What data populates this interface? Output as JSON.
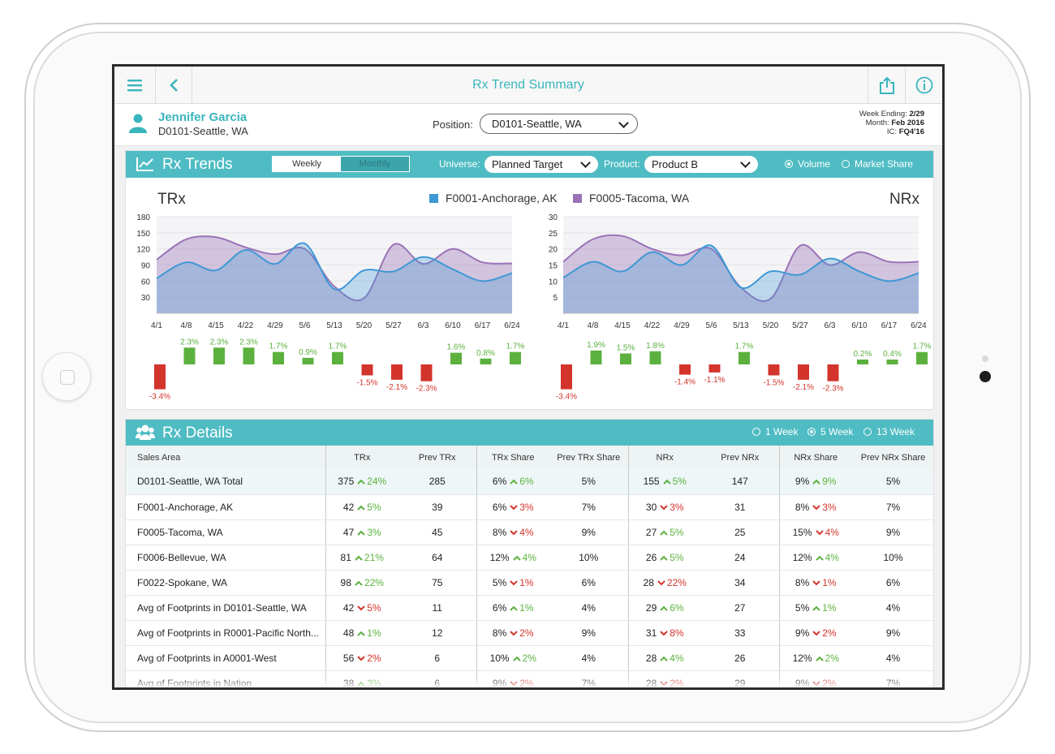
{
  "header": {
    "title": "Rx Trend Summary",
    "menu_icon": "hamburger-icon",
    "back_icon": "chevron-left-icon",
    "share_icon": "share-icon",
    "info_icon": "info-icon"
  },
  "user": {
    "name": "Jennifer Garcia",
    "territory": "D0101-Seattle, WA",
    "position_label": "Position:",
    "position_value": "D0101-Seattle, WA"
  },
  "period": {
    "week_label": "Week Ending:",
    "week_value": "2/29",
    "month_label": "Month:",
    "month_value": "Feb 2016",
    "ic_label": "IC:",
    "ic_value": "FQ4'16"
  },
  "trends": {
    "title": "Rx Trends",
    "tabs": [
      "Weekly",
      "Monthly"
    ],
    "universe_label": "Universe:",
    "universe_value": "Planned Target",
    "product_label": "Product:",
    "product_value": "Product B",
    "radios": [
      "Volume",
      "Market Share"
    ]
  },
  "colors": {
    "accent": "#4fbcc3",
    "series1": "#3e98d4",
    "series2": "#9a73b8",
    "up": "#5cb13e",
    "down": "#d3342c"
  },
  "chart_data": [
    {
      "type": "area",
      "title": "TRx",
      "x": [
        "4/1",
        "4/8",
        "4/15",
        "4/22",
        "4/29",
        "5/6",
        "5/13",
        "5/20",
        "5/27",
        "6/3",
        "6/10",
        "6/17",
        "6/24"
      ],
      "ylim": [
        0,
        180
      ],
      "yticks": [
        30,
        60,
        90,
        120,
        150,
        180
      ],
      "series": [
        {
          "name": "F0001-Anchorage, AK",
          "values": [
            65,
            95,
            80,
            118,
            92,
            130,
            45,
            80,
            78,
            105,
            82,
            60,
            75
          ]
        },
        {
          "name": "F0005-Tacoma, WA",
          "values": [
            100,
            138,
            142,
            123,
            110,
            120,
            50,
            28,
            128,
            92,
            120,
            95,
            93
          ]
        }
      ],
      "changes": [
        -3.4,
        2.3,
        2.3,
        2.3,
        1.7,
        0.9,
        1.7,
        -1.5,
        -2.1,
        -2.3,
        1.6,
        0.8,
        1.7
      ],
      "change_labels": [
        "-3.4%",
        "2.3%",
        "2.3%",
        "2.3%",
        "1.7%",
        "0.9%",
        "1.7%",
        "-1.5%",
        "-2.1%",
        "-2.3%",
        "1.6%",
        "0.8%",
        "1.7%"
      ]
    },
    {
      "type": "area",
      "title": "NRx",
      "x": [
        "4/1",
        "4/8",
        "4/15",
        "4/22",
        "4/29",
        "5/6",
        "5/13",
        "5/20",
        "5/27",
        "6/3",
        "6/10",
        "6/17",
        "6/24"
      ],
      "ylim": [
        0,
        30
      ],
      "yticks": [
        5,
        10,
        15,
        20,
        25,
        30
      ],
      "series": [
        {
          "name": "F0001-Anchorage, AK",
          "values": [
            11,
            16,
            13,
            19,
            15,
            21,
            8,
            13,
            12,
            17,
            13,
            10,
            12.5
          ]
        },
        {
          "name": "F0005-Tacoma, WA",
          "values": [
            16,
            23,
            24,
            20,
            18,
            20,
            8,
            4.5,
            21,
            15,
            19,
            16,
            16
          ]
        }
      ],
      "changes": [
        -3.4,
        1.9,
        1.5,
        1.8,
        -1.4,
        -1.1,
        1.7,
        -1.5,
        -2.1,
        -2.3,
        0.2,
        0.4,
        1.7
      ],
      "change_labels": [
        "-3.4%",
        "1.9%",
        "1.5%",
        "1.8%",
        "-1.4%",
        "-1.1%",
        "1.7%",
        "-1.5%",
        "-2.1%",
        "-2.3%",
        "0.2%",
        "0.4%",
        "1.7%"
      ]
    }
  ],
  "details": {
    "title": "Rx Details",
    "radios": [
      "1 Week",
      "5 Week",
      "13 Week"
    ],
    "columns": [
      "Sales Area",
      "TRx",
      "Prev TRx",
      "TRx Share",
      "Prev TRx Share",
      "NRx",
      "Prev NRx",
      "NRx Share",
      "Prev NRx Share"
    ],
    "rows": [
      {
        "area": "D0101-Seattle, WA Total",
        "trx": "375",
        "trx_d": "up",
        "trx_c": "24%",
        "prev_trx": "285",
        "trxs": "6%",
        "trxs_d": "up",
        "trxs_c": "6%",
        "prev_trxs": "5%",
        "nrx": "155",
        "nrx_d": "up",
        "nrx_c": "5%",
        "prev_nrx": "147",
        "nrxs": "9%",
        "nrxs_d": "up",
        "nrxs_c": "9%",
        "prev_nrxs": "5%"
      },
      {
        "area": "F0001-Anchorage, AK",
        "trx": "42",
        "trx_d": "up",
        "trx_c": "5%",
        "prev_trx": "39",
        "trxs": "6%",
        "trxs_d": "down",
        "trxs_c": "3%",
        "prev_trxs": "7%",
        "nrx": "30",
        "nrx_d": "down",
        "nrx_c": "3%",
        "prev_nrx": "31",
        "nrxs": "8%",
        "nrxs_d": "down",
        "nrxs_c": "3%",
        "prev_nrxs": "7%"
      },
      {
        "area": "F0005-Tacoma, WA",
        "trx": "47",
        "trx_d": "up",
        "trx_c": "3%",
        "prev_trx": "45",
        "trxs": "8%",
        "trxs_d": "down",
        "trxs_c": "4%",
        "prev_trxs": "9%",
        "nrx": "27",
        "nrx_d": "up",
        "nrx_c": "5%",
        "prev_nrx": "25",
        "nrxs": "15%",
        "nrxs_d": "down",
        "nrxs_c": "4%",
        "prev_nrxs": "9%"
      },
      {
        "area": "F0006-Bellevue, WA",
        "trx": "81",
        "trx_d": "up",
        "trx_c": "21%",
        "prev_trx": "64",
        "trxs": "12%",
        "trxs_d": "up",
        "trxs_c": "4%",
        "prev_trxs": "10%",
        "nrx": "26",
        "nrx_d": "up",
        "nrx_c": "5%",
        "prev_nrx": "24",
        "nrxs": "12%",
        "nrxs_d": "up",
        "nrxs_c": "4%",
        "prev_nrxs": "10%"
      },
      {
        "area": "F0022-Spokane, WA",
        "trx": "98",
        "trx_d": "up",
        "trx_c": "22%",
        "prev_trx": "75",
        "trxs": "5%",
        "trxs_d": "down",
        "trxs_c": "1%",
        "prev_trxs": "6%",
        "nrx": "28",
        "nrx_d": "down",
        "nrx_c": "22%",
        "prev_nrx": "34",
        "nrxs": "8%",
        "nrxs_d": "down",
        "nrxs_c": "1%",
        "prev_nrxs": "6%"
      },
      {
        "area": "Avg of Footprints in D0101-Seattle, WA",
        "trx": "42",
        "trx_d": "down",
        "trx_c": "5%",
        "prev_trx": "11",
        "trxs": "6%",
        "trxs_d": "up",
        "trxs_c": "1%",
        "prev_trxs": "4%",
        "nrx": "29",
        "nrx_d": "up",
        "nrx_c": "6%",
        "prev_nrx": "27",
        "nrxs": "5%",
        "nrxs_d": "up",
        "nrxs_c": "1%",
        "prev_nrxs": "4%"
      },
      {
        "area": "Avg of Footprints in R0001-Pacific North...",
        "trx": "48",
        "trx_d": "up",
        "trx_c": "1%",
        "prev_trx": "12",
        "trxs": "8%",
        "trxs_d": "down",
        "trxs_c": "2%",
        "prev_trxs": "9%",
        "nrx": "31",
        "nrx_d": "down",
        "nrx_c": "8%",
        "prev_nrx": "33",
        "nrxs": "9%",
        "nrxs_d": "down",
        "nrxs_c": "2%",
        "prev_nrxs": "9%"
      },
      {
        "area": "Avg of Footprints in A0001-West",
        "trx": "56",
        "trx_d": "down",
        "trx_c": "2%",
        "prev_trx": "6",
        "trxs": "10%",
        "trxs_d": "up",
        "trxs_c": "2%",
        "prev_trxs": "4%",
        "nrx": "28",
        "nrx_d": "up",
        "nrx_c": "4%",
        "prev_nrx": "26",
        "nrxs": "12%",
        "nrxs_d": "up",
        "nrxs_c": "2%",
        "prev_nrxs": "4%"
      },
      {
        "area": "Avg of Footprints in Nation",
        "trx": "38",
        "trx_d": "up",
        "trx_c": "3%",
        "prev_trx": "6",
        "trxs": "9%",
        "trxs_d": "down",
        "trxs_c": "2%",
        "prev_trxs": "7%",
        "nrx": "28",
        "nrx_d": "down",
        "nrx_c": "2%",
        "prev_nrx": "29",
        "nrxs": "9%",
        "nrxs_d": "down",
        "nrxs_c": "2%",
        "prev_nrxs": "7%"
      }
    ]
  }
}
